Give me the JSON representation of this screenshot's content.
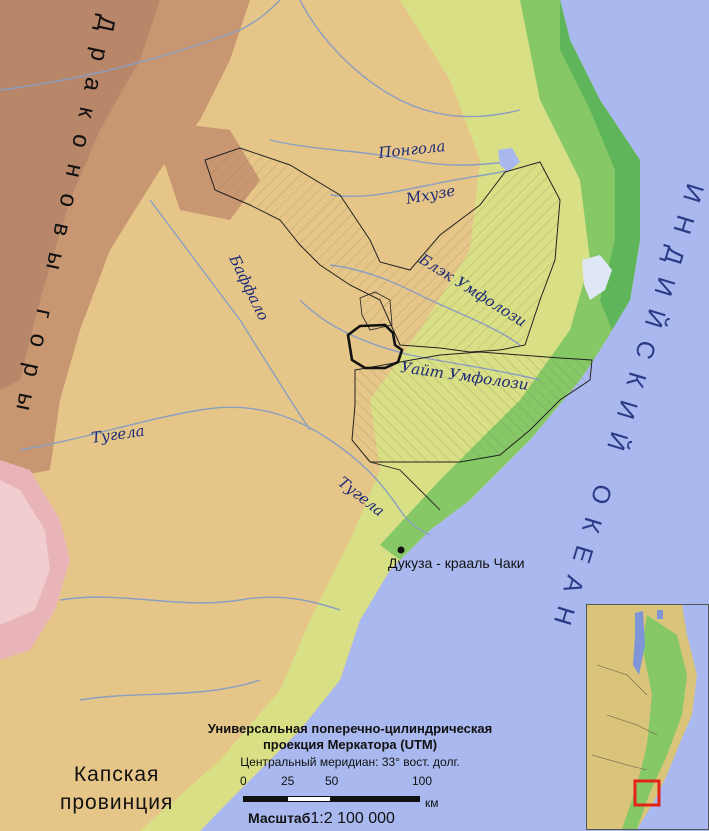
{
  "map": {
    "mountains_label": "Драконовы горы",
    "ocean_label": "ИНДИЙСКИЙ ОКЕАН",
    "province_label_line1": "Капская",
    "province_label_line2": "провинция",
    "rivers": {
      "pongola": "Понгола",
      "mkhuze": "Мхузе",
      "black_umfolozi": "Блэк Умфолози",
      "white_umfolozi": "Уайт Умфолози",
      "buffalo": "Баффало",
      "tugela_west": "Тугела",
      "tugela_east": "Тугела"
    },
    "place": "Дукуза - крааль Чаки",
    "projection_line1": "Универсальная поперечно-цилиндрическая",
    "projection_line2": "проекция Меркатора (UTM)",
    "meridian": "Центральный меридиан: 33° вост. долг.",
    "scale_ticks": [
      "0",
      "25",
      "50",
      "100"
    ],
    "scale_unit": "км",
    "scale_word": "Масштаб",
    "scale_ratio": "1:2 100 000",
    "colors": {
      "ocean": "#a9b8ee",
      "lowland": "#86c866",
      "plain": "#d4dc7a",
      "upland": "#e6c688",
      "highland": "#c89772",
      "summit": "#e8b4b8",
      "river": "#8a9fc2",
      "boundary": "#222222",
      "inset_marker": "#e3221a"
    }
  }
}
